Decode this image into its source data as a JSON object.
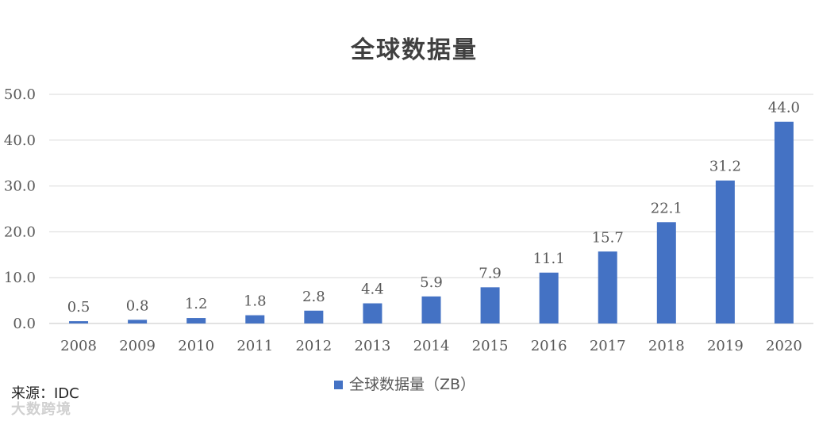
{
  "chart_data": {
    "type": "bar",
    "title": "全球数据量",
    "categories": [
      "2008",
      "2009",
      "2010",
      "2011",
      "2012",
      "2013",
      "2014",
      "2015",
      "2016",
      "2017",
      "2018",
      "2019",
      "2020"
    ],
    "series": [
      {
        "name": "全球数据量（ZB）",
        "values": [
          0.5,
          0.8,
          1.2,
          1.8,
          2.8,
          4.4,
          5.9,
          7.9,
          11.1,
          15.7,
          22.1,
          31.2,
          44.0
        ],
        "color": "#4472c4"
      }
    ],
    "data_labels": [
      "0.5",
      "0.8",
      "1.2",
      "1.8",
      "2.8",
      "4.4",
      "5.9",
      "7.9",
      "11.1",
      "15.7",
      "22.1",
      "31.2",
      "44.0"
    ],
    "ylim": [
      0,
      50
    ],
    "yticks": [
      0,
      10,
      20,
      30,
      40,
      50
    ],
    "ytick_labels": [
      "0.0",
      "10.0",
      "20.0",
      "30.0",
      "40.0",
      "50.0"
    ],
    "grid": true,
    "legend": "bottom-center"
  },
  "source": "来源：IDC",
  "watermark": "大数跨境",
  "colors": {
    "bar": "#4472c4",
    "grid": "#d9d9d9",
    "text": "#595959",
    "title": "#404040"
  }
}
